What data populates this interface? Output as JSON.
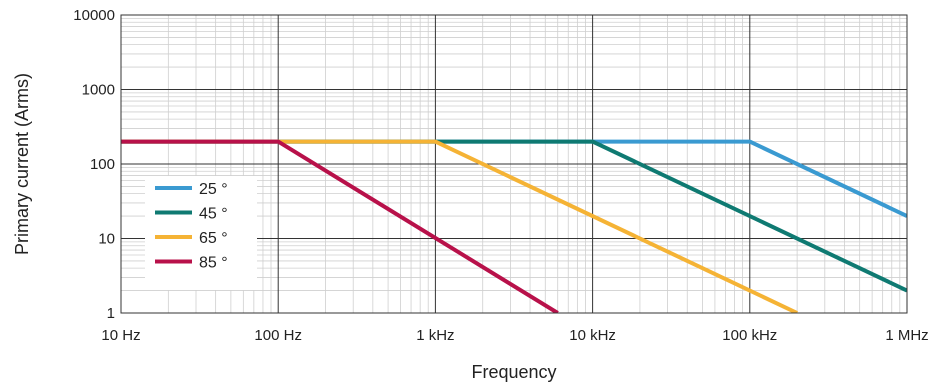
{
  "chart_data": {
    "type": "line",
    "xlabel": "Frequency",
    "ylabel": "Primary current (Arms)",
    "x_scale": "log",
    "y_scale": "log",
    "xlim": [
      10,
      1000000
    ],
    "ylim": [
      1,
      10000
    ],
    "x_ticks": [
      {
        "value": 10,
        "label": "10 Hz"
      },
      {
        "value": 100,
        "label": "100 Hz"
      },
      {
        "value": 1000,
        "label": "1 kHz"
      },
      {
        "value": 10000,
        "label": "10 kHz"
      },
      {
        "value": 100000,
        "label": "100 kHz"
      },
      {
        "value": 1000000,
        "label": "1 MHz"
      }
    ],
    "y_ticks": [
      {
        "value": 1,
        "label": "1"
      },
      {
        "value": 10,
        "label": "10"
      },
      {
        "value": 100,
        "label": "100"
      },
      {
        "value": 1000,
        "label": "1000"
      },
      {
        "value": 10000,
        "label": "10000"
      }
    ],
    "grid": true,
    "legend_position": "bottom-left",
    "series": [
      {
        "name": "25 °",
        "color": "#3a9ad1",
        "points": [
          [
            10,
            200
          ],
          [
            100000,
            200
          ],
          [
            1000000,
            20
          ]
        ]
      },
      {
        "name": "45 °",
        "color": "#0f7a72",
        "points": [
          [
            10,
            200
          ],
          [
            10000,
            200
          ],
          [
            1000000,
            2
          ]
        ]
      },
      {
        "name": "65 °",
        "color": "#f5b335",
        "points": [
          [
            10,
            200
          ],
          [
            1000,
            200
          ],
          [
            200000,
            1
          ]
        ]
      },
      {
        "name": "85 °",
        "color": "#b8114a",
        "points": [
          [
            10,
            200
          ],
          [
            100,
            200
          ],
          [
            6000,
            1
          ]
        ]
      }
    ]
  }
}
